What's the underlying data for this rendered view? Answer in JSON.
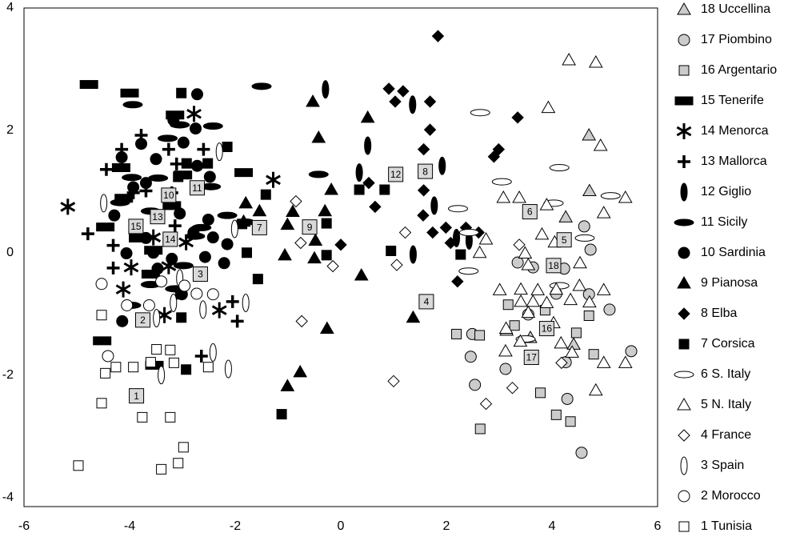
{
  "chart_data": {
    "type": "scatter",
    "xlim": [
      -6,
      6
    ],
    "ylim": [
      -4.15,
      4
    ],
    "xticks": [
      -6,
      -4,
      -2,
      0,
      2,
      4,
      6
    ],
    "yticks": [
      -4,
      -2,
      0,
      2,
      4
    ],
    "series": [
      {
        "name": "18 Uccellina",
        "marker": "triangle",
        "color": "#cccccc",
        "x": [
          4.7,
          4.71,
          4.26,
          3.14,
          3.59,
          4.41
        ],
        "y": [
          1.92,
          1.01,
          0.58,
          -1.27,
          -1.39,
          -1.5
        ]
      },
      {
        "name": "17 Piombino",
        "marker": "circle",
        "color": "#cccccc",
        "x": [
          4.61,
          4.73,
          3.35,
          3.64,
          4.23,
          4.08,
          4.7,
          5.09,
          3.55,
          2.49,
          3.12,
          2.54,
          4.29,
          4.56,
          5.5,
          2.46,
          4.26
        ],
        "y": [
          0.43,
          0.05,
          -0.16,
          -0.24,
          -0.26,
          -0.67,
          -0.68,
          -0.93,
          -1.01,
          -1.33,
          -1.9,
          -2.16,
          -2.39,
          -3.27,
          -1.61,
          -1.7,
          -1.79
        ]
      },
      {
        "name": "16 Argentario",
        "marker": "square",
        "color": "#cccccc",
        "x": [
          2.19,
          2.63,
          3.17,
          3.29,
          3.78,
          4.08,
          4.35,
          2.64,
          4.46,
          4.79,
          4.7,
          3.87
        ],
        "y": [
          -1.33,
          -1.35,
          -0.85,
          -1.19,
          -2.29,
          -2.65,
          -2.76,
          -2.88,
          -1.31,
          -1.66,
          -1.03,
          -0.94
        ]
      },
      {
        "name": "15 Tenerife",
        "marker": "rect",
        "color": "#000000",
        "x": [
          -4.77,
          -4.0,
          -3.14,
          -4.16,
          -2.99,
          -1.84,
          -4.11,
          -3.2,
          -4.46,
          -3.84,
          -3.55,
          -4.52,
          -3.53,
          -3.6
        ],
        "y": [
          2.75,
          2.61,
          2.25,
          1.39,
          1.27,
          1.31,
          0.89,
          0.77,
          0.42,
          0.24,
          0.04,
          -1.44,
          -1.84,
          -0.35
        ]
      },
      {
        "name": "14 Menorca",
        "marker": "asterisk",
        "color": "#000000",
        "x": [
          -2.78,
          -5.17,
          -1.28,
          -3.55,
          -2.93,
          -3.97,
          -3.26,
          -4.12,
          -3.34,
          -2.3
        ],
        "y": [
          2.27,
          0.75,
          1.19,
          0.25,
          0.17,
          -0.24,
          -0.22,
          -0.6,
          -1.02,
          -0.94
        ]
      },
      {
        "name": "13 Mallorca",
        "marker": "plus",
        "color": "#000000",
        "x": [
          -3.78,
          -4.15,
          -3.26,
          -2.6,
          -4.44,
          -3.11,
          -3.93,
          -3.69,
          -3.2,
          -4.79,
          -4.31,
          -3.14,
          -4.31,
          -2.05,
          -1.96,
          -2.64
        ],
        "y": [
          1.92,
          1.69,
          1.69,
          1.69,
          1.36,
          1.45,
          0.98,
          1.01,
          0.98,
          0.31,
          0.12,
          0.44,
          -0.25,
          -0.8,
          -1.12,
          -1.69
        ]
      },
      {
        "name": "12 Giglio",
        "marker": "v-ellipse",
        "color": "#000000",
        "x": [
          -0.29,
          1.36,
          0.51,
          1.92,
          0.35,
          1.77,
          2.19,
          1.37,
          2.43
        ],
        "y": [
          2.67,
          2.42,
          1.75,
          1.42,
          1.31,
          0.77,
          0.24,
          -0.03,
          0.2
        ]
      },
      {
        "name": "11 Sicily",
        "marker": "h-ellipse",
        "color": "#000000",
        "x": [
          -3.94,
          -3.05,
          -2.42,
          -3.28,
          -3.96,
          -3.46,
          -2.46,
          -0.42,
          -1.5,
          -2.15,
          -2.76,
          -1.81,
          -4.18,
          -3.6,
          -2.64,
          -3.6,
          -3.14,
          -3.97,
          -2.98
        ],
        "y": [
          2.42,
          2.09,
          2.07,
          1.87,
          1.23,
          1.22,
          1.08,
          1.28,
          2.72,
          0.61,
          0.27,
          0.5,
          0.82,
          0.68,
          0.41,
          -0.52,
          -0.59,
          -0.86,
          -0.21
        ]
      },
      {
        "name": "10 Sardinia",
        "marker": "circle",
        "color": "#000000",
        "x": [
          -2.72,
          -3.17,
          -2.75,
          -2.98,
          -3.78,
          -4.15,
          -3.5,
          -2.72,
          -2.48,
          -3.69,
          -3.93,
          -4.29,
          -2.51,
          -3.05,
          -2.42,
          -3.69,
          -4.06,
          -3.55,
          -3.2,
          -2.15,
          -2.21,
          -3.47,
          -3.01,
          -4.14,
          -2.57,
          -2.79
        ],
        "y": [
          2.59,
          2.17,
          2.03,
          1.8,
          1.78,
          1.56,
          1.53,
          1.42,
          1.24,
          1.14,
          1.07,
          0.61,
          0.54,
          0.64,
          0.25,
          0.24,
          -0.01,
          0.0,
          -0.1,
          0.14,
          -0.17,
          -0.26,
          -0.68,
          -1.12,
          -0.07,
          0.33
        ]
      },
      {
        "name": "9 Pianosa",
        "marker": "triangle",
        "color": "#000000",
        "x": [
          -0.53,
          0.51,
          -0.42,
          -0.18,
          -0.91,
          -1.01,
          -0.3,
          -0.48,
          -1.06,
          -0.5,
          0.39,
          -0.26,
          1.37,
          -0.77,
          -1.01,
          -1.8,
          -1.54,
          -1.84
        ],
        "y": [
          2.47,
          2.21,
          1.88,
          1.03,
          0.67,
          0.46,
          0.68,
          0.2,
          -0.04,
          -0.09,
          -0.37,
          -1.24,
          -1.06,
          -1.95,
          -2.18,
          0.81,
          0.68,
          0.51
        ]
      },
      {
        "name": "8 Elba",
        "marker": "diamond",
        "color": "#000000",
        "x": [
          1.84,
          0.91,
          1.18,
          1.03,
          1.69,
          3.35,
          1.69,
          1.57,
          2.99,
          2.9,
          0.53,
          0.65,
          1.57,
          1.56,
          1.74,
          1.99,
          2.37,
          2.61,
          2.08,
          2.21,
          0.0
        ],
        "y": [
          3.54,
          2.68,
          2.64,
          2.47,
          2.47,
          2.21,
          2.01,
          1.69,
          1.69,
          1.57,
          1.14,
          0.75,
          1.02,
          0.61,
          0.33,
          0.41,
          0.41,
          0.33,
          0.16,
          -0.47,
          0.13
        ]
      },
      {
        "name": "7 Corsica",
        "marker": "square",
        "color": "#000000",
        "x": [
          -3.02,
          -2.15,
          -2.52,
          -2.92,
          -3.08,
          -1.42,
          -1.87,
          -1.78,
          -1.57,
          -3.04,
          -3.02,
          -2.93,
          -1.12,
          0.35,
          0.83,
          -0.27,
          -0.27,
          0.95,
          2.27
        ],
        "y": [
          2.61,
          1.73,
          1.46,
          1.46,
          1.24,
          0.95,
          0.47,
          0.0,
          -0.43,
          -0.68,
          -1.06,
          -1.91,
          -2.64,
          1.03,
          1.03,
          0.48,
          -0.04,
          0.03,
          -0.03
        ]
      },
      {
        "name": "6 S. Italy",
        "marker": "h-ellipse",
        "color": "#ffffff",
        "x": [
          2.64,
          3.05,
          4.14,
          4.03,
          2.22,
          5.11,
          4.62,
          2.42,
          4.14,
          3.5,
          2.43
        ],
        "y": [
          2.29,
          1.16,
          1.39,
          0.81,
          0.72,
          0.93,
          0.24,
          -0.3,
          -0.54,
          -1.41,
          0.33
        ]
      },
      {
        "name": "5 N. Italy",
        "marker": "triangle",
        "color": "#ffffff",
        "x": [
          4.32,
          4.83,
          3.93,
          4.92,
          3.08,
          3.38,
          2.75,
          2.63,
          3.9,
          3.81,
          4.05,
          4.98,
          5.39,
          4.53,
          3.49,
          3.55,
          3.41,
          3.73,
          4.08,
          4.52,
          4.98,
          3.41,
          3.64,
          3.9,
          4.35,
          4.71,
          3.01,
          3.13,
          3.4,
          3.12,
          4.17,
          4.38,
          4.98,
          5.39,
          4.83,
          4.03,
          3.55
        ],
        "y": [
          3.15,
          3.11,
          2.37,
          1.75,
          0.9,
          0.9,
          0.22,
          0.0,
          0.78,
          0.3,
          0.17,
          0.65,
          0.9,
          -0.17,
          -0.01,
          -0.2,
          -0.6,
          -0.61,
          -0.6,
          -0.54,
          -0.61,
          -0.8,
          -0.8,
          -0.82,
          -0.77,
          -0.81,
          -0.61,
          -1.24,
          -1.45,
          -1.61,
          -1.48,
          -1.63,
          -1.8,
          -1.8,
          -2.25,
          -1.15,
          -0.98
        ]
      },
      {
        "name": "4 France",
        "marker": "diamond",
        "color": "#ffffff",
        "x": [
          -0.85,
          -0.76,
          -0.74,
          -0.15,
          1.06,
          1.22,
          1.0,
          2.75,
          3.25,
          4.18,
          3.38
        ],
        "y": [
          0.84,
          0.16,
          -1.12,
          -0.22,
          -0.2,
          0.33,
          -2.1,
          -2.47,
          -2.21,
          -1.8,
          0.13
        ]
      },
      {
        "name": "3 Spain",
        "marker": "v-ellipse",
        "color": "#ffffff",
        "x": [
          -4.49,
          -2.3,
          -2.01,
          -3.05,
          -2.61,
          -1.8,
          -2.42,
          -2.13,
          -3.4,
          -3.17,
          -3.49
        ],
        "y": [
          0.81,
          1.65,
          0.39,
          -0.42,
          -0.93,
          -0.82,
          -1.63,
          -1.9,
          -2.0,
          -0.82,
          -1.07
        ]
      },
      {
        "name": "2 Morocco",
        "marker": "circle",
        "color": "#ffffff",
        "x": [
          -4.53,
          -4.05,
          -3.63,
          -4.41,
          -3.4,
          -2.73,
          -2.42,
          -2.96
        ],
        "y": [
          -0.51,
          -0.86,
          -0.86,
          -1.69,
          -0.47,
          -0.67,
          -0.68,
          -0.54
        ]
      },
      {
        "name": "1 Tunisia",
        "marker": "square",
        "color": "#ffffff",
        "x": [
          -4.53,
          -4.26,
          -3.93,
          -3.6,
          -3.16,
          -2.51,
          -4.46,
          -4.53,
          -3.76,
          -3.23,
          -2.98,
          -3.08,
          -3.4,
          -4.97,
          -3.49,
          -3.23
        ],
        "y": [
          -1.02,
          -1.87,
          -1.87,
          -1.79,
          -1.8,
          -1.87,
          -1.97,
          -2.46,
          -2.69,
          -2.69,
          -3.18,
          -3.44,
          -3.54,
          -3.48,
          -1.58,
          -1.59
        ]
      }
    ],
    "centroids": [
      {
        "label": "1",
        "x": -3.87,
        "y": -2.34
      },
      {
        "label": "2",
        "x": -3.75,
        "y": -1.1
      },
      {
        "label": "3",
        "x": -2.66,
        "y": -0.35
      },
      {
        "label": "4",
        "x": 1.62,
        "y": -0.8
      },
      {
        "label": "5",
        "x": 4.23,
        "y": 0.21
      },
      {
        "label": "6",
        "x": 3.58,
        "y": 0.67
      },
      {
        "label": "7",
        "x": -1.54,
        "y": 0.41
      },
      {
        "label": "8",
        "x": 1.6,
        "y": 1.33
      },
      {
        "label": "9",
        "x": -0.59,
        "y": 0.42
      },
      {
        "label": "10",
        "x": -3.26,
        "y": 0.94
      },
      {
        "label": "11",
        "x": -2.72,
        "y": 1.06
      },
      {
        "label": "12",
        "x": 1.04,
        "y": 1.28
      },
      {
        "label": "13",
        "x": -3.47,
        "y": 0.59
      },
      {
        "label": "14",
        "x": -3.23,
        "y": 0.22
      },
      {
        "label": "15",
        "x": -3.88,
        "y": 0.43
      },
      {
        "label": "16",
        "x": 3.9,
        "y": -1.24
      },
      {
        "label": "17",
        "x": 3.61,
        "y": -1.71
      },
      {
        "label": "18",
        "x": 4.03,
        "y": -0.21
      }
    ]
  }
}
